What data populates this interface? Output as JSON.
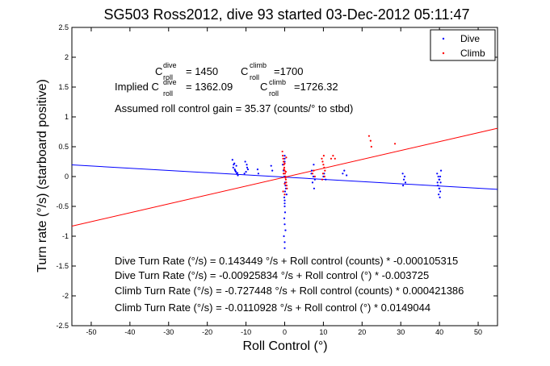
{
  "chart_data": {
    "type": "scatter",
    "title": "SG503 Ross2012, dive 93 started 03-Dec-2012 05:11:47",
    "xlabel": "Roll Control (°)",
    "ylabel": "Turn rate (°/s) (starboard positive)",
    "xlim": [
      -55,
      55
    ],
    "ylim": [
      -2.5,
      2.5
    ],
    "x_ticks": [
      -50,
      -40,
      -30,
      -20,
      -10,
      0,
      10,
      20,
      30,
      40,
      50
    ],
    "y_ticks": [
      -2.5,
      -2,
      -1.5,
      -1,
      -0.5,
      0,
      0.5,
      1,
      1.5,
      2,
      2.5
    ],
    "grid": false,
    "legend_position": "top-right",
    "series": [
      {
        "name": "Dive",
        "color": "#0000ff",
        "marker": "dot",
        "x": [
          -13.5,
          -13.2,
          -12.9,
          -12.6,
          -12.4,
          -12.1,
          -13.3,
          -12.8,
          -12.5,
          -13.0,
          -12.2,
          -10.2,
          -9.8,
          -9.5,
          -10.0,
          -9.7,
          -10.4,
          -7.0,
          -6.8,
          -3.5,
          -3.2,
          -0.5,
          -0.3,
          -0.1,
          0.1,
          0.3,
          0.5,
          -0.2,
          0.2,
          0.0,
          0.0,
          0.0,
          0.1,
          -0.1,
          0.0,
          0.2,
          -0.2,
          0.0,
          0.0,
          0.1,
          -0.1,
          0.0,
          0.0,
          0.0,
          7.0,
          7.4,
          7.8,
          7.2,
          7.6,
          6.9,
          7.5,
          10.2,
          10.6,
          10.0,
          15.0,
          15.4,
          16.0,
          30.5,
          30.8,
          31.2,
          30.6,
          31.0,
          39.4,
          39.7,
          40.0,
          40.3,
          39.6,
          39.9,
          40.2,
          39.8,
          40.1,
          40.4,
          39.5,
          40.0,
          39.9,
          40.2
        ],
        "y": [
          0.28,
          0.2,
          0.12,
          0.08,
          0.05,
          0.02,
          0.15,
          0.1,
          0.18,
          0.22,
          0.06,
          0.25,
          0.2,
          0.12,
          0.08,
          0.15,
          0.05,
          0.12,
          0.05,
          0.18,
          0.1,
          0.2,
          0.1,
          0.0,
          -0.1,
          -0.2,
          -0.3,
          0.05,
          -0.15,
          0.3,
          -0.4,
          -0.5,
          -0.6,
          -0.7,
          -0.8,
          -0.9,
          -1.0,
          -1.1,
          -1.2,
          -0.25,
          -0.35,
          0.35,
          0.25,
          -0.45,
          0.1,
          0.0,
          -0.05,
          -0.1,
          -0.2,
          0.05,
          0.2,
          0.05,
          -0.05,
          0.0,
          0.05,
          0.1,
          0.02,
          0.05,
          -0.05,
          -0.1,
          -0.15,
          0.0,
          0.05,
          0.0,
          -0.05,
          -0.1,
          -0.15,
          -0.2,
          -0.25,
          -0.3,
          -0.35,
          0.1,
          -0.1,
          -0.2,
          -0.05,
          0.0
        ]
      },
      {
        "name": "Climb",
        "color": "#ff0000",
        "marker": "dot",
        "x": [
          -0.6,
          -0.4,
          -0.2,
          0.0,
          0.2,
          0.4,
          0.6,
          -0.5,
          -0.3,
          -0.1,
          0.1,
          0.3,
          0.5,
          -0.4,
          0.0,
          0.4,
          -0.2,
          0.2,
          0.0,
          0.0,
          -0.3,
          0.3,
          7.2,
          7.5,
          7.8,
          9.6,
          9.8,
          10.0,
          10.2,
          10.4,
          9.9,
          10.1,
          10.3,
          9.7,
          12.0,
          12.5,
          13.0,
          21.8,
          22.2,
          22.4,
          28.5
        ],
        "y": [
          0.42,
          0.3,
          0.2,
          0.1,
          0.0,
          -0.1,
          -0.2,
          0.35,
          0.25,
          0.15,
          0.05,
          -0.05,
          -0.15,
          -0.25,
          -0.3,
          0.32,
          0.12,
          -0.02,
          0.22,
          -0.12,
          0.05,
          0.08,
          0.05,
          0.1,
          0.0,
          0.3,
          0.25,
          0.2,
          0.15,
          0.1,
          0.05,
          0.35,
          0.0,
          -0.05,
          0.3,
          0.35,
          0.3,
          0.68,
          0.6,
          0.5,
          0.55
        ]
      }
    ],
    "fit_lines": [
      {
        "name": "Dive fit",
        "color": "#0000ff",
        "intercept": -0.00925834,
        "slope": -0.003725
      },
      {
        "name": "Climb fit",
        "color": "#ff0000",
        "intercept": -0.0110928,
        "slope": 0.0149044
      }
    ],
    "annotations": {
      "c_dive_label": "C",
      "c_dive_sup": "dive",
      "c_dive_sub": "roll",
      "c_dive_value": "= 1450",
      "c_climb_label": "C",
      "c_climb_sup": "climb",
      "c_climb_sub": "roll",
      "c_climb_value": "=1700",
      "implied_prefix": "Implied C",
      "implied_dive_sup": "dive",
      "implied_dive_sub": "roll",
      "implied_dive_value": "= 1362.09",
      "implied_climb_label": "C",
      "implied_climb_sup": "climb",
      "implied_climb_sub": "roll",
      "implied_climb_value": "=1726.32",
      "assumed_gain": "Assumed roll control gain = 35.37 (counts/° to stbd)",
      "eq1": "Dive Turn Rate (°/s) = 0.143449 °/s + Roll control (counts) * -0.000105315",
      "eq2": "Dive Turn Rate (°/s) = -0.00925834 °/s + Roll control (°) * -0.003725",
      "eq3": "Climb Turn Rate (°/s) = -0.727448 °/s + Roll control (counts) * 0.000421386",
      "eq4": "Climb Turn Rate (°/s) = -0.0110928 °/s + Roll control (°) * 0.0149044"
    }
  }
}
